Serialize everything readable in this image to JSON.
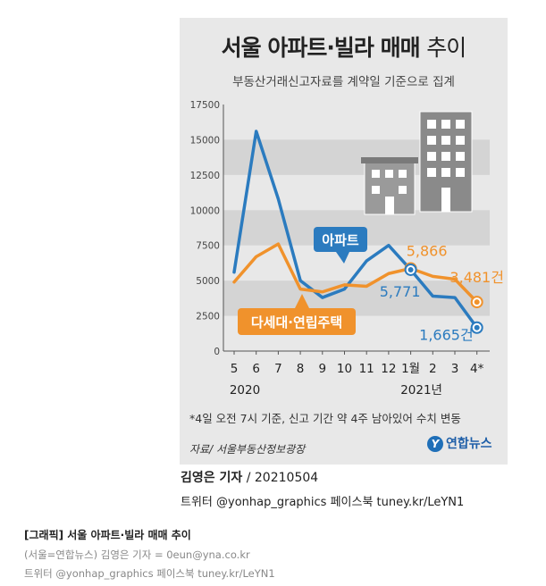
{
  "title_main": "서울 아파트·빌라 매매",
  "title_tail": "추이",
  "subtitle": "부동산거래신고자료를 계약일 기준으로 집계",
  "footnote": "*4일 오전 7시 기준, 신고 기간 약 4주 남아있어 수치 변동",
  "source": "자료/ 서울부동산정보광장",
  "logo_text": "연합뉴스",
  "byline_name": "김영은 기자",
  "byline_date": "/ 20210504",
  "social_line": "트위터 @yonhap_graphics  페이스북 tuney.kr/LeYN1",
  "caption_title": "[그래픽] 서울 아파트·빌라 매매 추이",
  "caption_reporter": "(서울=연합뉴스) 김영은 기자 = 0eun@yna.co.kr",
  "caption_social": "트위터 @yonhap_graphics 페이스북 tuney.kr/LeYN1",
  "chart_data": {
    "type": "line",
    "title": "서울 아파트·빌라 매매 추이",
    "subtitle": "부동산거래신고자료를 계약일 기준으로 집계",
    "categories": [
      "5",
      "6",
      "7",
      "8",
      "9",
      "10",
      "11",
      "12",
      "1월",
      "2",
      "3",
      "4*"
    ],
    "year_labels": [
      {
        "at": 0,
        "text": "2020"
      },
      {
        "at": 8,
        "text": "2021년"
      }
    ],
    "ylim": [
      0,
      17500
    ],
    "yticks": [
      0,
      2500,
      5000,
      7500,
      10000,
      12500,
      15000,
      17500
    ],
    "series": [
      {
        "name": "아파트",
        "color": "#2b7bbf",
        "values": [
          5600,
          15600,
          10800,
          5000,
          3800,
          4400,
          6400,
          7500,
          5771,
          3900,
          3800,
          1665
        ]
      },
      {
        "name": "다세대·연립주택",
        "color": "#f0922c",
        "values": [
          4900,
          6700,
          7600,
          4400,
          4200,
          4700,
          4600,
          5500,
          5866,
          5300,
          5100,
          3481
        ]
      }
    ],
    "data_labels": [
      {
        "series": 1,
        "index": 8,
        "text": "5,866"
      },
      {
        "series": 1,
        "index": 11,
        "text": "3,481건"
      },
      {
        "series": 0,
        "index": 8,
        "text": "5,771"
      },
      {
        "series": 0,
        "index": 11,
        "text": "1,665건"
      }
    ]
  }
}
